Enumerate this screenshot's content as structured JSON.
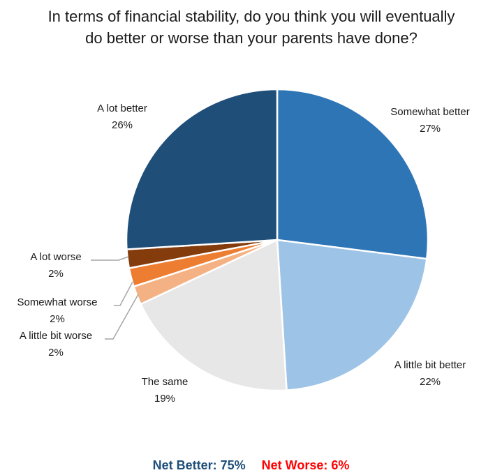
{
  "chart_data": {
    "type": "pie",
    "title": "In terms of financial stability, do you think you will eventually do better or worse than your parents have done?",
    "slices": [
      {
        "label": "Somewhat better",
        "value": 27,
        "display": "27%",
        "color": "#2e75b6"
      },
      {
        "label": "A little bit better",
        "value": 22,
        "display": "22%",
        "color": "#9dc3e6"
      },
      {
        "label": "The same",
        "value": 19,
        "display": "19%",
        "color": "#e7e7e7"
      },
      {
        "label": "A little bit worse",
        "value": 2,
        "display": "2%",
        "color": "#f4b183"
      },
      {
        "label": "Somewhat worse",
        "value": 2,
        "display": "2%",
        "color": "#ed7d31"
      },
      {
        "label": "A lot worse",
        "value": 2,
        "display": "2%",
        "color": "#843c0c"
      },
      {
        "label": "A lot better",
        "value": 26,
        "display": "26%",
        "color": "#1f4e79"
      }
    ],
    "start": "12 o'clock, clockwise"
  },
  "summary": {
    "net_better": "Net Better: 75%",
    "net_worse": "Net Worse: 6%",
    "net_better_color": "#1f4e79",
    "net_worse_color": "#ff0000"
  }
}
